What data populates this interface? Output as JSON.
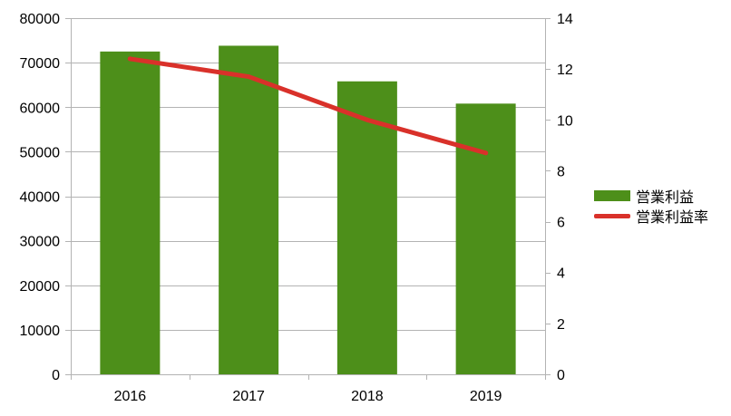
{
  "chart_data": {
    "type": "bar",
    "categories": [
      "2016",
      "2017",
      "2018",
      "2019"
    ],
    "series": [
      {
        "name": "営業利益",
        "type": "bar",
        "axis": "left",
        "color": "#4d8f1a",
        "values": [
          72500,
          73800,
          65800,
          60800
        ]
      },
      {
        "name": "営業利益率",
        "type": "line",
        "axis": "right",
        "color": "#d9312a",
        "values": [
          12.4,
          11.7,
          10.0,
          8.7
        ]
      }
    ],
    "y_left": {
      "min": 0,
      "max": 80000,
      "ticks": [
        "0",
        "10000",
        "20000",
        "30000",
        "40000",
        "50000",
        "60000",
        "70000",
        "80000"
      ]
    },
    "y_right": {
      "min": 0,
      "max": 14,
      "ticks": [
        "0",
        "2",
        "4",
        "6",
        "8",
        "10",
        "12",
        "14"
      ]
    },
    "grid": true,
    "legend_position": "right"
  }
}
